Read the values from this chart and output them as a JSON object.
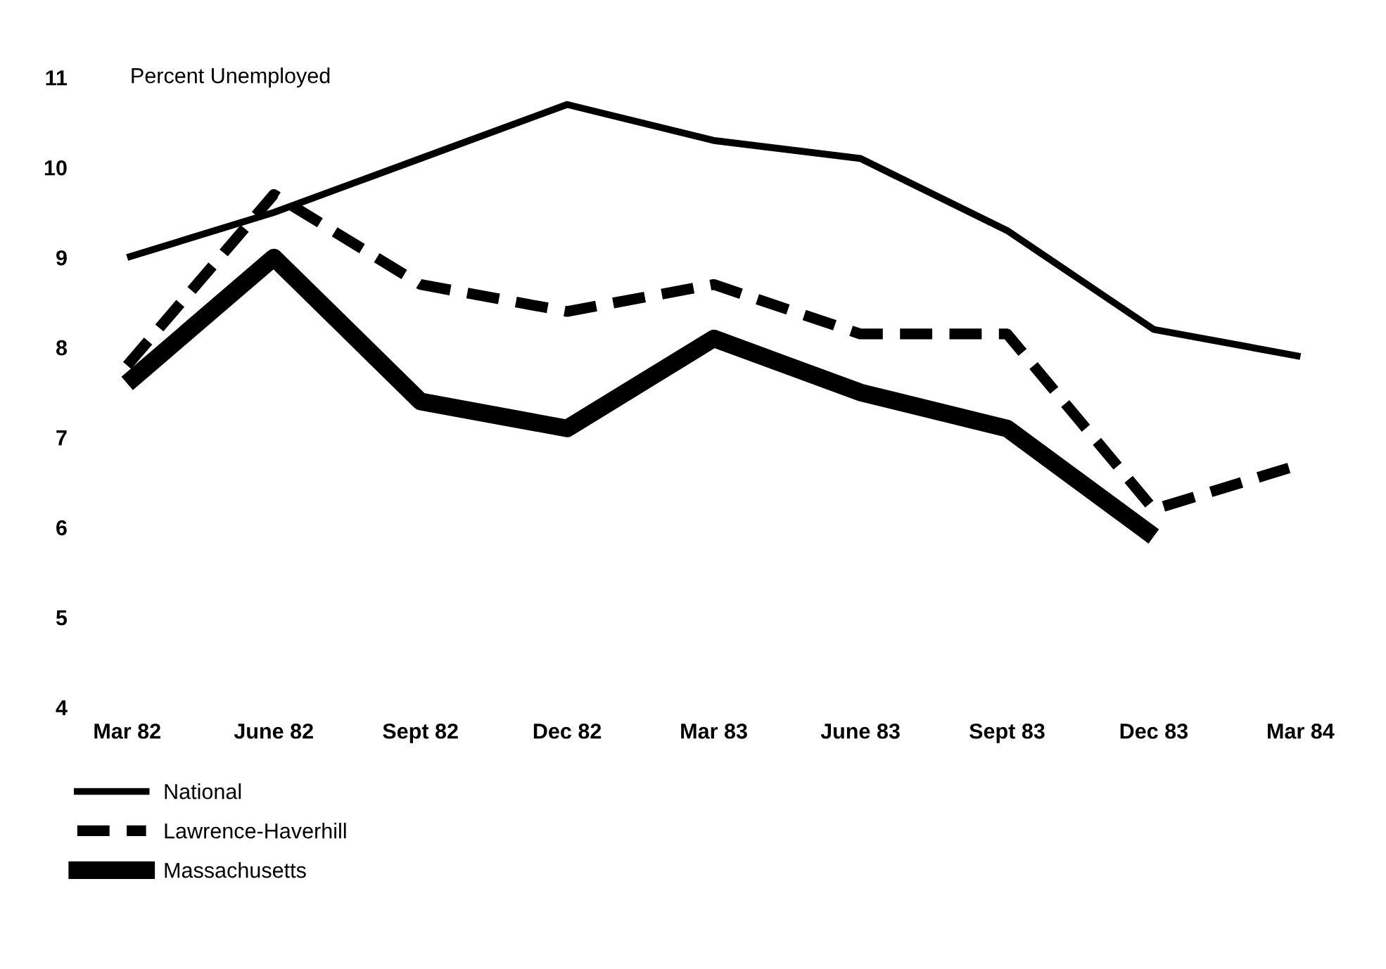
{
  "chart_data": {
    "type": "line",
    "ylabel": "Percent Unemployed",
    "categories": [
      "Mar 82",
      "June 82",
      "Sept 82",
      "Dec 82",
      "Mar 83",
      "June 83",
      "Sept 83",
      "Dec 83",
      "Mar 84"
    ],
    "series": [
      {
        "name": "National",
        "color": "#000000",
        "line_style": "solid",
        "values": [
          9.0,
          9.5,
          10.1,
          10.7,
          10.3,
          10.1,
          9.3,
          8.2,
          7.9
        ]
      },
      {
        "name": "Lawrence-Haverhill",
        "color": "#000000",
        "line_style": "dashed",
        "values": [
          7.8,
          9.7,
          8.7,
          8.4,
          8.7,
          8.15,
          8.15,
          6.2,
          6.7
        ]
      },
      {
        "name": "Massachusetts",
        "color": "#000000",
        "line_style": "solid",
        "values": [
          7.6,
          9.0,
          7.4,
          7.1,
          8.1,
          7.5,
          7.1,
          5.9,
          null
        ]
      }
    ],
    "ylim": [
      4,
      11
    ],
    "yticks": [
      4,
      5,
      6,
      7,
      8,
      9,
      10,
      11
    ],
    "grid": false,
    "legend": "bottom left",
    "marker": "none"
  }
}
